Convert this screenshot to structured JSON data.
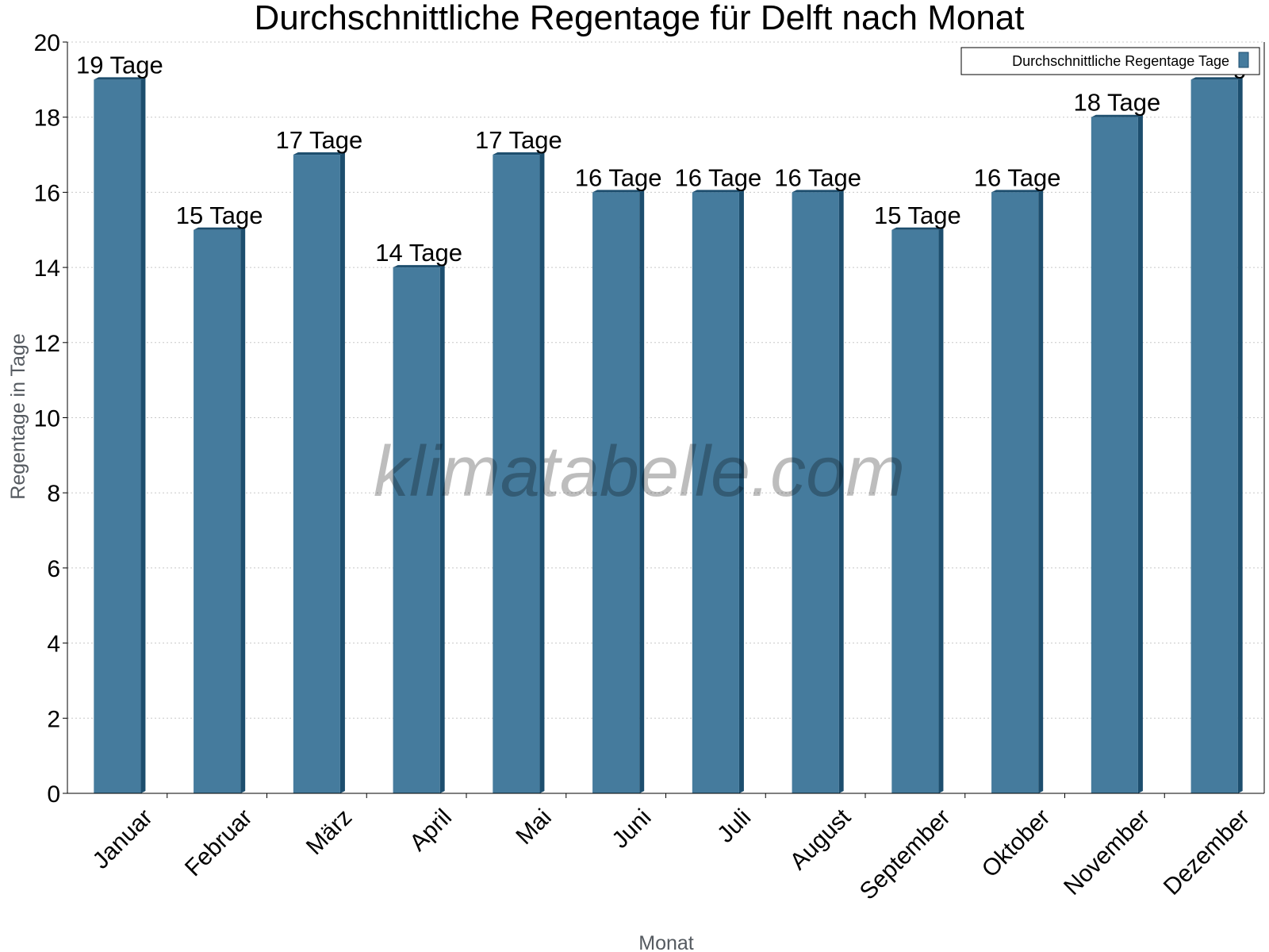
{
  "chart_data": {
    "type": "bar",
    "title": "Durchschnittliche Regentage für Delft nach Monat",
    "xlabel": "Monat",
    "ylabel": "Regentage in Tage",
    "categories": [
      "Januar",
      "Februar",
      "März",
      "April",
      "Mai",
      "Juni",
      "Juli",
      "August",
      "September",
      "Oktober",
      "November",
      "Dezember"
    ],
    "series": [
      {
        "name": "Durchschnittliche Regentage Tage",
        "values": [
          19,
          15,
          17,
          14,
          17,
          16,
          16,
          16,
          15,
          16,
          18,
          19
        ],
        "labels": [
          "19 Tage",
          "15 Tage",
          "17 Tage",
          "14 Tage",
          "17 Tage",
          "16 Tage",
          "16 Tage",
          "16 Tage",
          "15 Tage",
          "16 Tage",
          "18 Tage",
          "19 Tage"
        ]
      }
    ],
    "ylim": [
      0,
      20
    ],
    "yticks": [
      "0",
      "2",
      "4",
      "6",
      "8",
      "10",
      "12",
      "14",
      "16",
      "18",
      "20"
    ],
    "grid": true,
    "legend_position": "top-right",
    "colors": {
      "bar": "#457b9d",
      "bar_side": "#1d4e6e",
      "grid": "#c8c8c8"
    }
  },
  "watermark": "klimatabelle.com"
}
